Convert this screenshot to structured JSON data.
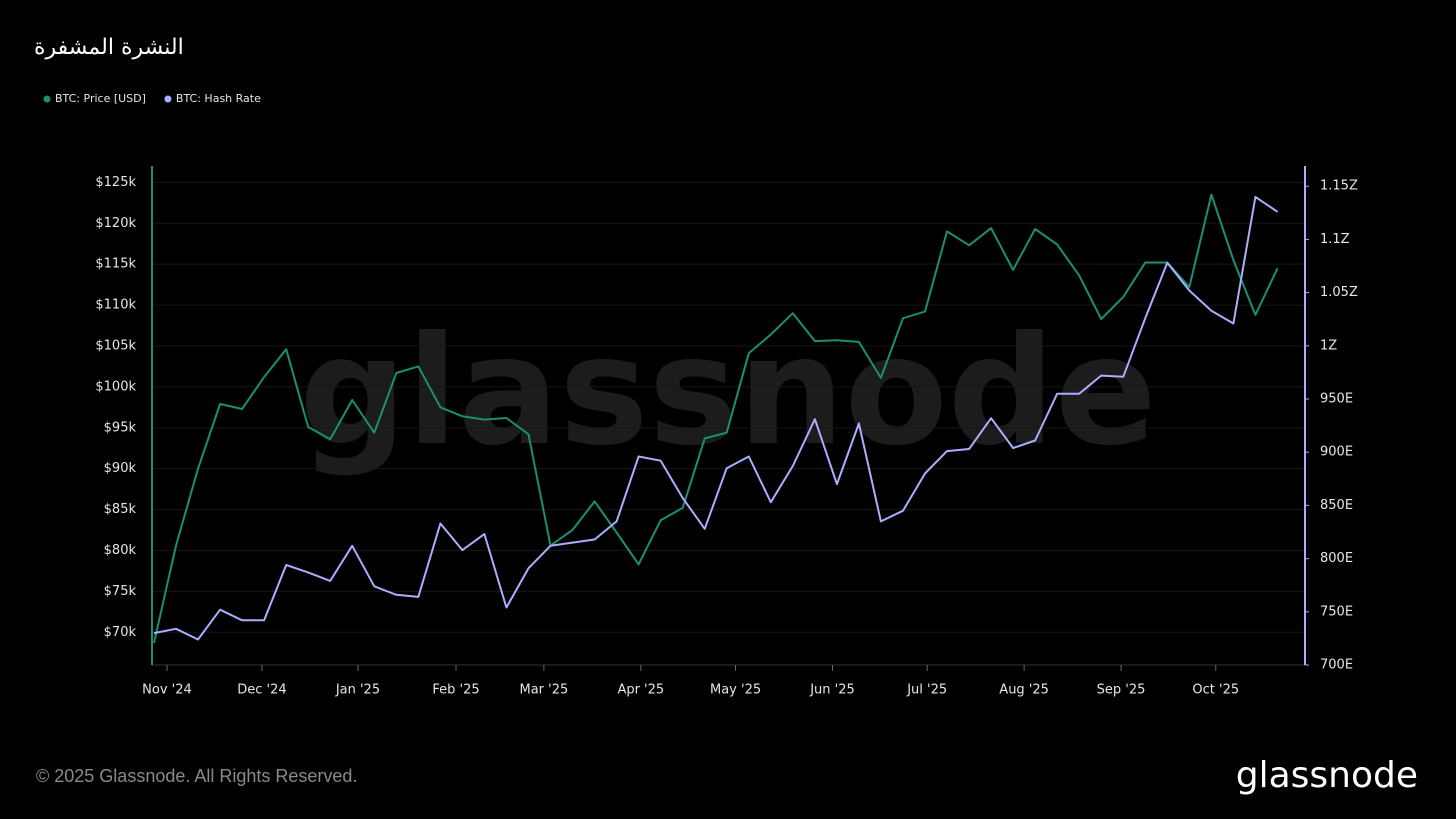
{
  "chart_data": {
    "type": "line",
    "title": "النشرة المشفرة",
    "watermark": "glassnode",
    "footer": "© 2025 Glassnode. All Rights Reserved.",
    "logo": "glassnode",
    "x": [
      0,
      1,
      2,
      3,
      4,
      5,
      6,
      7,
      8,
      9,
      10,
      11,
      12,
      13,
      14,
      15,
      16,
      17,
      18,
      19,
      20,
      21,
      22,
      23,
      24,
      25,
      26,
      27,
      28,
      29,
      30,
      31,
      32,
      33,
      34,
      35,
      36,
      37,
      38,
      39,
      40,
      41,
      42,
      43,
      44,
      45,
      46,
      47,
      48,
      49,
      50,
      51
    ],
    "xlim": [
      -0.09,
      52.25
    ],
    "xticks": [
      {
        "value": 0.59,
        "label": "Nov '24"
      },
      {
        "value": 4.9,
        "label": "Dec '24"
      },
      {
        "value": 9.26,
        "label": "Jan '25"
      },
      {
        "value": 13.71,
        "label": "Feb '25"
      },
      {
        "value": 17.7,
        "label": "Mar '25"
      },
      {
        "value": 22.1,
        "label": "Apr '25"
      },
      {
        "value": 26.4,
        "label": "May '25"
      },
      {
        "value": 30.8,
        "label": "Jun '25"
      },
      {
        "value": 35.1,
        "label": "Jul '25"
      },
      {
        "value": 39.5,
        "label": "Aug '25"
      },
      {
        "value": 43.9,
        "label": "Sep '25"
      },
      {
        "value": 48.2,
        "label": "Oct '25"
      }
    ],
    "ylim": [
      66000,
      127000
    ],
    "yticks": [
      {
        "value": 70000,
        "label": "$70k"
      },
      {
        "value": 75000,
        "label": "$75k"
      },
      {
        "value": 80000,
        "label": "$80k"
      },
      {
        "value": 85000,
        "label": "$85k"
      },
      {
        "value": 90000,
        "label": "$90k"
      },
      {
        "value": 95000,
        "label": "$95k"
      },
      {
        "value": 100000,
        "label": "$100k"
      },
      {
        "value": 105000,
        "label": "$105k"
      },
      {
        "value": 110000,
        "label": "$110k"
      },
      {
        "value": 115000,
        "label": "$115k"
      },
      {
        "value": 120000,
        "label": "$120k"
      },
      {
        "value": 125000,
        "label": "$125k"
      }
    ],
    "y2lim": [
      700,
      1169
    ],
    "y2ticks": [
      {
        "value": 700,
        "label": "700E"
      },
      {
        "value": 750,
        "label": "750E"
      },
      {
        "value": 800,
        "label": "800E"
      },
      {
        "value": 850,
        "label": "850E"
      },
      {
        "value": 900,
        "label": "900E"
      },
      {
        "value": 950,
        "label": "950E"
      },
      {
        "value": 1000,
        "label": "1Z"
      },
      {
        "value": 1050,
        "label": "1.05Z"
      },
      {
        "value": 1100,
        "label": "1.1Z"
      },
      {
        "value": 1150,
        "label": "1.15Z"
      }
    ],
    "grid": true,
    "series": [
      {
        "name": "BTC: Price [USD]",
        "color": "#1a8f72",
        "values": [
          68700,
          80600,
          90000,
          97900,
          97300,
          101200,
          104600,
          95100,
          93600,
          98400,
          94400,
          101700,
          102500,
          97500,
          96400,
          96000,
          96200,
          94200,
          80600,
          82500,
          86000,
          82200,
          78300,
          83700,
          85200,
          93700,
          94400,
          104100,
          106400,
          109000,
          105600,
          105700,
          105500,
          101100,
          108400,
          109200,
          119000,
          117300,
          119400,
          114300,
          119300,
          117400,
          113600,
          108300,
          111000,
          115200,
          115200,
          112200,
          123500,
          115500,
          108800,
          114500
        ]
      },
      {
        "name": "BTC: Hash Rate",
        "color": "#a9aeff",
        "axis": "y2",
        "values": [
          730,
          734,
          724,
          752,
          742,
          742,
          794,
          787,
          779,
          812,
          774,
          766,
          764,
          833,
          808,
          823,
          754,
          791,
          812,
          815,
          818,
          835,
          896,
          892,
          857,
          828,
          885,
          896,
          853,
          887,
          931,
          870,
          927,
          835,
          845,
          880,
          901,
          903,
          932,
          904,
          911,
          955,
          955,
          972,
          971,
          1026,
          1078,
          1052,
          1033,
          1021,
          1140,
          1126
        ]
      }
    ]
  }
}
